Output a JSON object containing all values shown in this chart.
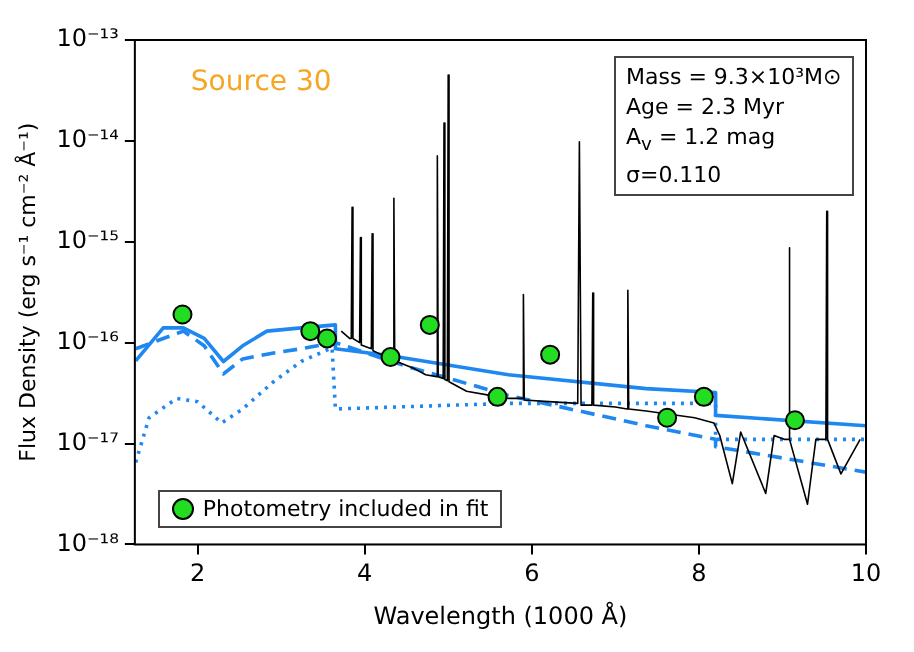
{
  "chart_data": {
    "type": "line",
    "xlabel": "Wavelength (1000 Å)",
    "ylabel": "Flux Density (erg s⁻¹ cm⁻² Å⁻¹)",
    "log": "y",
    "xlim": [
      1.25,
      10
    ],
    "xticks": [
      2,
      4,
      6,
      8,
      10
    ],
    "ylim": [
      1e-18,
      1e-13
    ],
    "yticks": [
      {
        "value": 1e-18,
        "label": "10⁻¹⁸"
      },
      {
        "value": 1e-17,
        "label": "10⁻¹⁷"
      },
      {
        "value": 1e-16,
        "label": "10⁻¹⁶"
      },
      {
        "value": 1e-15,
        "label": "10⁻¹⁵"
      },
      {
        "value": 1e-14,
        "label": "10⁻¹⁴"
      },
      {
        "value": 1e-13,
        "label": "10⁻¹³"
      }
    ],
    "grid": false,
    "legend": "bottom left",
    "annotations": [
      "Source 30",
      "Mass = 9.3×10³M⊙",
      "Age = 2.3 Myr",
      "A$_{v}$ = 1.2 mag",
      "σ=0.110"
    ],
    "series": [
      {
        "color": "#000000",
        "marker": "none",
        "line_style": "solid",
        "x": [
          3.72,
          3.82,
          3.84,
          3.85,
          3.86,
          3.94,
          3.95,
          3.96,
          4.08,
          4.09,
          4.1,
          4.31,
          4.34,
          4.35,
          4.36,
          4.6,
          4.73,
          4.86,
          4.87,
          4.88,
          4.94,
          4.95,
          4.96,
          4.99,
          5.0,
          5.01,
          5.22,
          5.5,
          5.72,
          5.89,
          5.9,
          5.91,
          6.2,
          6.55,
          6.57,
          6.59,
          6.72,
          6.73,
          6.74,
          7.0,
          7.14,
          7.15,
          7.16,
          7.37,
          7.95,
          8.18,
          8.25,
          8.4,
          8.5,
          8.8,
          8.9,
          9.02,
          9.07,
          9.08,
          9.09,
          9.3,
          9.4,
          9.52,
          9.53,
          9.54,
          9.7,
          9.93
        ],
        "values": [
          1.3e-16,
          1.1e-16,
          1.1e-16,
          2.2e-15,
          1.1e-16,
          1e-16,
          1.1e-15,
          9.5e-17,
          8.7e-17,
          1.2e-15,
          8.3e-17,
          6.9e-17,
          6.8e-17,
          2.7e-15,
          6.6e-17,
          5.5e-17,
          4.8e-17,
          4.6e-17,
          7.1e-15,
          4.6e-17,
          4.4e-17,
          1.5e-14,
          4.3e-17,
          4.2e-17,
          4.5e-14,
          4.1e-17,
          3.3e-17,
          3e-17,
          2.8e-17,
          2.8e-17,
          3e-16,
          2.7e-17,
          2.6e-17,
          2.5e-17,
          9.8e-15,
          2.4e-17,
          2.4e-17,
          3.1e-16,
          2.4e-17,
          2.3e-17,
          2.2e-17,
          3.3e-16,
          2.2e-17,
          2.1e-17,
          1.8e-17,
          1.6e-17,
          1.2e-17,
          4e-18,
          1.3e-17,
          3.2e-18,
          1.2e-17,
          1.1e-17,
          1.1e-17,
          8.7e-16,
          1.1e-17,
          2.5e-18,
          1.1e-17,
          1.1e-17,
          2e-15,
          1.1e-17,
          5e-18,
          1.1e-17
        ]
      },
      {
        "color": "#1e88f0",
        "marker": "none",
        "line_style": "solid",
        "x": [
          1.26,
          1.59,
          1.83,
          2.08,
          2.31,
          2.54,
          2.83,
          3.24,
          3.65,
          3.65,
          4.31,
          5.72,
          7.37,
          8.2,
          8.2,
          10
        ],
        "values": [
          6.6e-17,
          1.4e-16,
          1.4e-16,
          1.1e-16,
          6.5e-17,
          9.3e-17,
          1.3e-16,
          1.4e-16,
          1.5e-16,
          8.7e-17,
          7.4e-17,
          4.8e-17,
          3.5e-17,
          3.2e-17,
          1.9e-17,
          1.5e-17
        ]
      },
      {
        "color": "#1e88f0",
        "marker": "none",
        "line_style": "dashed",
        "x": [
          1.26,
          1.59,
          1.83,
          2.08,
          2.31,
          2.54,
          2.91,
          3.24,
          3.65,
          4.48,
          5.72,
          7.37,
          8.2,
          8.2,
          10
        ],
        "values": [
          8.7e-17,
          1.1e-16,
          1.3e-16,
          9.3e-17,
          4.9e-17,
          6.9e-17,
          7.9e-17,
          8.7e-17,
          1e-16,
          5.9e-17,
          3e-17,
          1.5e-17,
          1.1e-17,
          9.3e-18,
          5.2e-18
        ]
      },
      {
        "color": "#1e88f0",
        "marker": "none",
        "line_style": "dotted",
        "x": [
          1.26,
          1.42,
          1.75,
          2.0,
          2.29,
          2.54,
          2.91,
          3.24,
          3.61,
          3.65,
          5.72,
          8.2,
          8.2,
          10
        ],
        "values": [
          6.5e-18,
          1.8e-17,
          2.8e-17,
          2.6e-17,
          1.6e-17,
          2.2e-17,
          4.1e-17,
          6.5e-17,
          8.9e-17,
          2.2e-17,
          2.5e-17,
          2.5e-17,
          1.1e-17,
          1.1e-17
        ]
      },
      {
        "type": "scatter",
        "name": "Photometry included in fit",
        "color": "#22dd22",
        "marker": "circle",
        "x": [
          1.82,
          3.35,
          3.55,
          4.31,
          4.78,
          5.59,
          6.22,
          7.62,
          8.06,
          9.15
        ],
        "values": [
          1.9e-16,
          1.3e-16,
          1.1e-16,
          7.2e-17,
          1.5e-16,
          2.9e-17,
          7.6e-17,
          1.8e-17,
          2.9e-17,
          1.7e-17
        ]
      }
    ]
  }
}
